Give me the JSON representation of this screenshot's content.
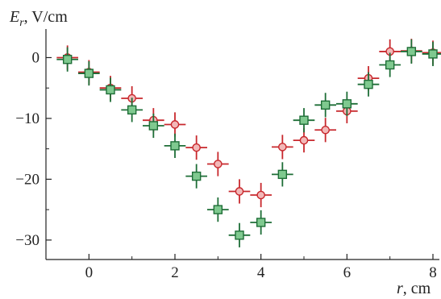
{
  "chart_data": {
    "type": "scatter",
    "ylabel": {
      "symbol": "E",
      "subscript": "r",
      "unit": ", V/cm"
    },
    "xlabel": {
      "symbol": "r",
      "unit": ", cm"
    },
    "xlim": [
      -1.0,
      8.15
    ],
    "ylim": [
      -33.2,
      4.7
    ],
    "xticks": [
      0,
      2,
      4,
      6,
      8
    ],
    "xtick_labels": [
      "0",
      "2",
      "4",
      "6",
      "8"
    ],
    "yticks": [
      0,
      -10,
      -20,
      -30
    ],
    "ytick_labels": [
      "0",
      "−10",
      "−20",
      "−30"
    ],
    "grid": false,
    "error_bars": {
      "x": 0.25,
      "y": 2
    },
    "series": [
      {
        "marker": "circle",
        "color": "#c8282d",
        "fill": "#f2b8b8",
        "x": [
          -0.5,
          0,
          0.5,
          1,
          1.5,
          2,
          2.5,
          3,
          3.5,
          4,
          4.5,
          5,
          5.5,
          6,
          6.5,
          7,
          7.5,
          8
        ],
        "y": [
          0,
          -2.4,
          -5,
          -6.7,
          -10.3,
          -11,
          -14.8,
          -17.5,
          -22,
          -22.6,
          -14.7,
          -13.6,
          -11.9,
          -8.8,
          -3.4,
          1,
          1.1,
          0.8
        ]
      },
      {
        "marker": "square",
        "color": "#1e6e37",
        "fill": "#7fc98f",
        "x": [
          -0.5,
          0,
          0.5,
          1,
          1.5,
          2,
          2.5,
          3,
          3.5,
          4,
          4.5,
          5,
          5.5,
          6,
          6.5,
          7,
          7.5,
          8
        ],
        "y": [
          -0.3,
          -2.6,
          -5.3,
          -8.6,
          -11.2,
          -14.5,
          -19.5,
          -25,
          -29.2,
          -27.1,
          -19.2,
          -10.3,
          -7.8,
          -7.6,
          -4.4,
          -1.2,
          1,
          0.6
        ]
      }
    ]
  }
}
